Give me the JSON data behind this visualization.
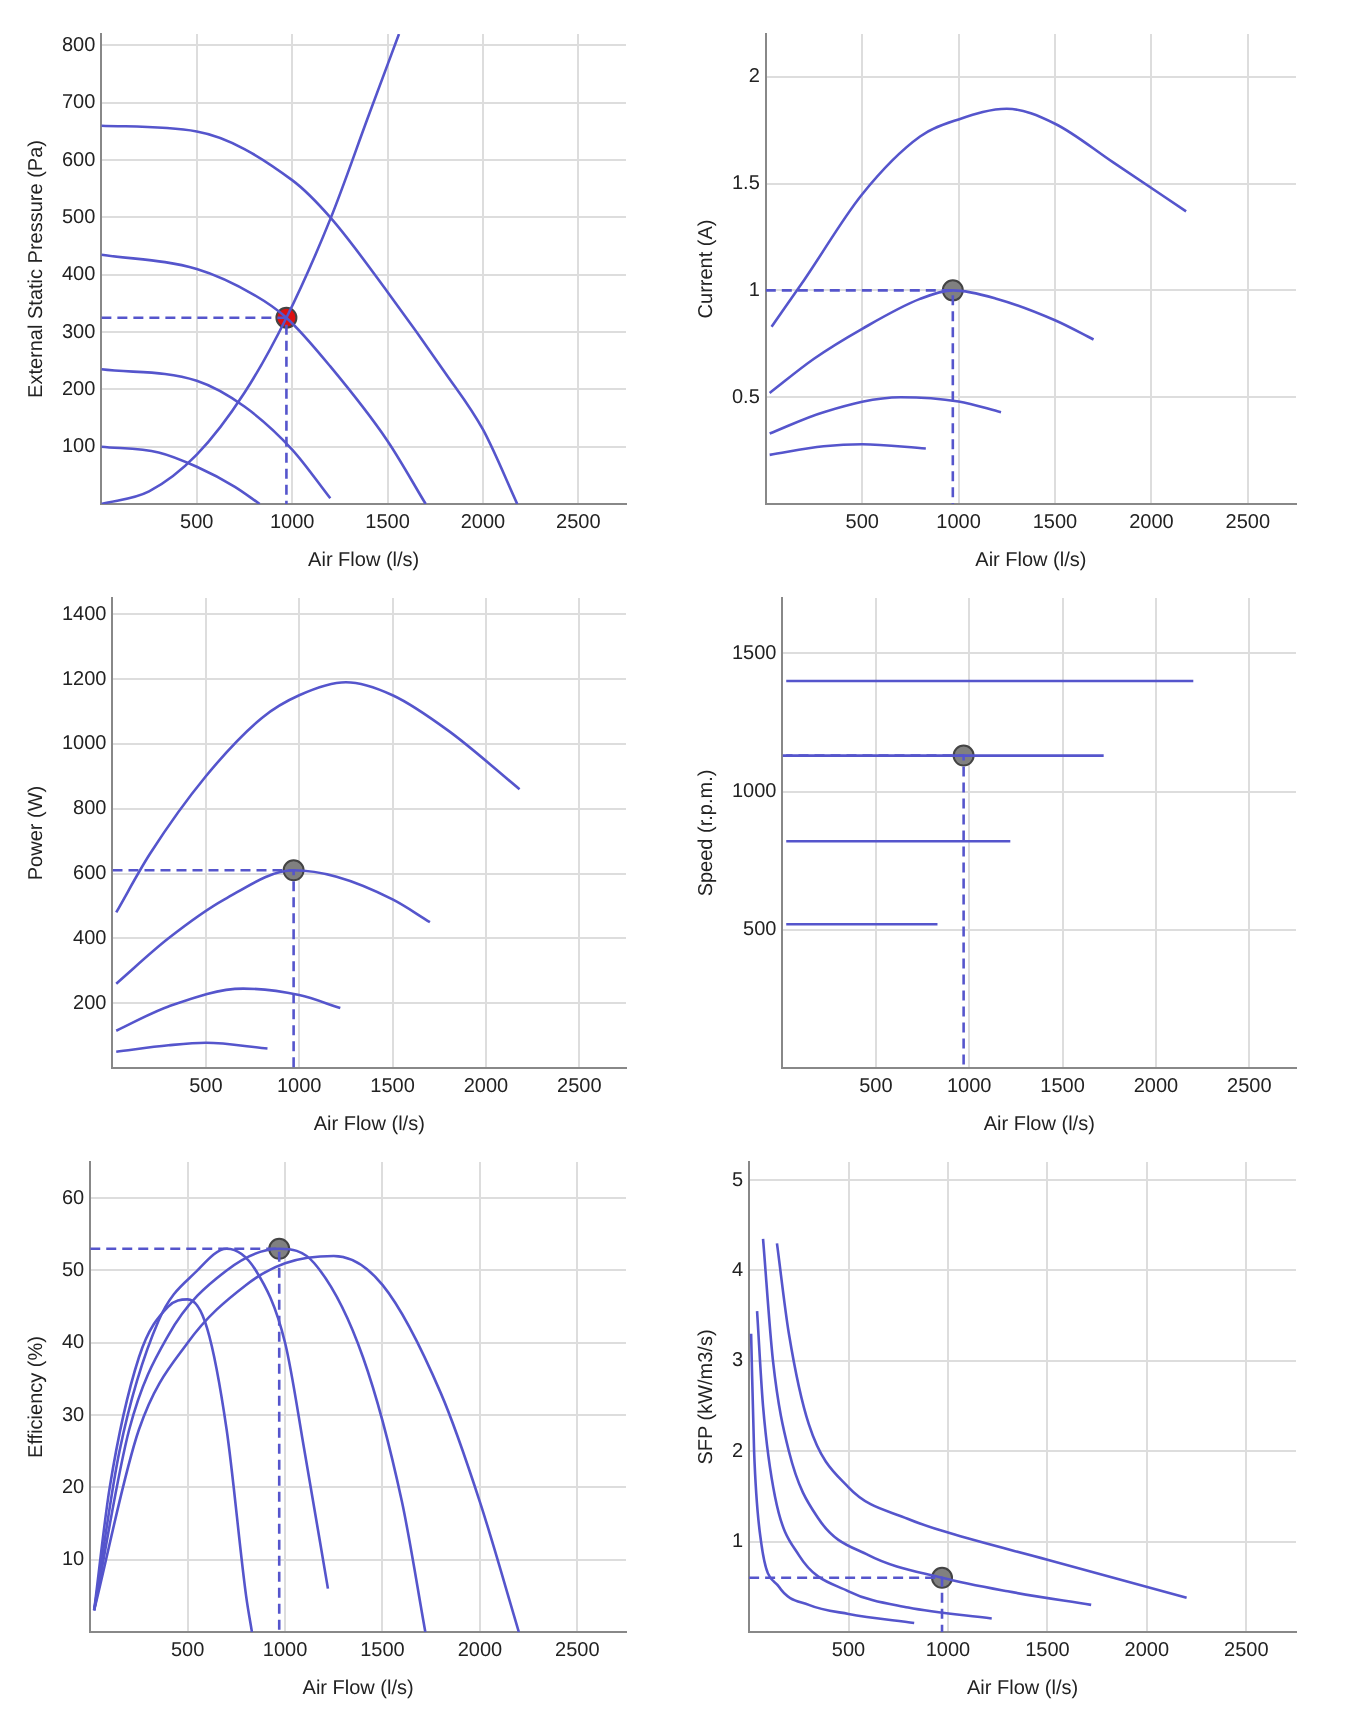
{
  "chart_data": [
    {
      "type": "line",
      "xlabel": "Air Flow (l/s)",
      "ylabel": "External Static Pressure (Pa)",
      "xlim": [
        0,
        2750
      ],
      "xticks": [
        500,
        1000,
        1500,
        2000,
        2500
      ],
      "ylim": [
        0,
        820
      ],
      "yticks": [
        100,
        200,
        300,
        400,
        500,
        600,
        700,
        800
      ],
      "grid": true,
      "series": [
        {
          "type": "line",
          "color": "#5555cc",
          "marker": "none",
          "x": [
            0,
            500,
            1000,
            1200,
            1500,
            1800,
            2000,
            2180
          ],
          "values": [
            660,
            650,
            565,
            500,
            370,
            230,
            130,
            0
          ]
        },
        {
          "type": "line",
          "color": "#5555cc",
          "marker": "none",
          "x": [
            0,
            500,
            800,
            970,
            1200,
            1500,
            1700
          ],
          "values": [
            435,
            410,
            365,
            325,
            240,
            110,
            0
          ]
        },
        {
          "type": "line",
          "color": "#5555cc",
          "marker": "none",
          "x": [
            0,
            500,
            750,
            1000,
            1200
          ],
          "values": [
            235,
            215,
            170,
            95,
            10
          ]
        },
        {
          "type": "line",
          "color": "#5555cc",
          "marker": "none",
          "x": [
            0,
            300,
            500,
            700,
            830
          ],
          "values": [
            100,
            90,
            65,
            30,
            0
          ]
        },
        {
          "type": "line",
          "color": "#5555cc",
          "marker": "none",
          "x": [
            0,
            250,
            500,
            750,
            970,
            1200,
            1400,
            1560
          ],
          "values": [
            0,
            22,
            86,
            194,
            325,
            497,
            677,
            820
          ]
        },
        {
          "type": "line",
          "color": "#5555cc",
          "marker": "none",
          "line_style": "dashed",
          "x": [
            0,
            970,
            970
          ],
          "values": [
            325,
            325,
            0
          ]
        },
        {
          "type": "scatter",
          "color": "#dd1111",
          "marker": "circle",
          "x": [
            970
          ],
          "values": [
            325
          ]
        }
      ]
    },
    {
      "type": "line",
      "xlabel": "Air Flow (l/s)",
      "ylabel": "Current (A)",
      "xlim": [
        0,
        2750
      ],
      "xticks": [
        500,
        1000,
        1500,
        2000,
        2500
      ],
      "ylim": [
        0,
        2.2
      ],
      "yticks": [
        0.5,
        1,
        1.5,
        2
      ],
      "grid": true,
      "series": [
        {
          "type": "line",
          "color": "#5555cc",
          "marker": "none",
          "x": [
            30,
            200,
            500,
            800,
            1000,
            1250,
            1500,
            1800,
            2180
          ],
          "values": [
            0.83,
            1.05,
            1.45,
            1.72,
            1.8,
            1.85,
            1.78,
            1.6,
            1.37
          ]
        },
        {
          "type": "line",
          "color": "#5555cc",
          "marker": "none",
          "x": [
            20,
            250,
            500,
            800,
            970,
            1200,
            1500,
            1700
          ],
          "values": [
            0.52,
            0.68,
            0.82,
            0.96,
            1.0,
            0.96,
            0.86,
            0.77
          ]
        },
        {
          "type": "line",
          "color": "#5555cc",
          "marker": "none",
          "x": [
            20,
            300,
            700,
            1000,
            1220
          ],
          "values": [
            0.33,
            0.43,
            0.5,
            0.48,
            0.43
          ]
        },
        {
          "type": "line",
          "color": "#5555cc",
          "marker": "none",
          "x": [
            20,
            300,
            500,
            830
          ],
          "values": [
            0.23,
            0.27,
            0.28,
            0.26
          ]
        },
        {
          "type": "line",
          "color": "#5555cc",
          "marker": "none",
          "line_style": "dashed",
          "x": [
            0,
            970,
            970
          ],
          "values": [
            1.0,
            1.0,
            0
          ]
        },
        {
          "type": "scatter",
          "color": "#808080",
          "marker": "circle",
          "x": [
            970
          ],
          "values": [
            1.0
          ]
        }
      ]
    },
    {
      "type": "line",
      "xlabel": "Air Flow (l/s)",
      "ylabel": "Power (W)",
      "xlim": [
        0,
        2750
      ],
      "xticks": [
        500,
        1000,
        1500,
        2000,
        2500
      ],
      "ylim": [
        0,
        1450
      ],
      "yticks": [
        200,
        400,
        600,
        800,
        1000,
        1200,
        1400
      ],
      "grid": true,
      "series": [
        {
          "type": "line",
          "color": "#5555cc",
          "marker": "none",
          "x": [
            20,
            200,
            500,
            800,
            1000,
            1250,
            1500,
            1800,
            2180
          ],
          "values": [
            480,
            660,
            900,
            1080,
            1150,
            1190,
            1150,
            1040,
            860
          ]
        },
        {
          "type": "line",
          "color": "#5555cc",
          "marker": "none",
          "x": [
            20,
            300,
            600,
            970,
            1200,
            1500,
            1700
          ],
          "values": [
            260,
            400,
            520,
            610,
            590,
            520,
            450
          ]
        },
        {
          "type": "line",
          "color": "#5555cc",
          "marker": "none",
          "x": [
            20,
            300,
            700,
            1000,
            1220
          ],
          "values": [
            115,
            190,
            245,
            225,
            185
          ]
        },
        {
          "type": "line",
          "color": "#5555cc",
          "marker": "none",
          "x": [
            20,
            300,
            500,
            830
          ],
          "values": [
            50,
            70,
            78,
            60
          ]
        },
        {
          "type": "line",
          "color": "#5555cc",
          "marker": "none",
          "line_style": "dashed",
          "x": [
            0,
            970,
            970
          ],
          "values": [
            610,
            610,
            0
          ]
        },
        {
          "type": "scatter",
          "color": "#808080",
          "marker": "circle",
          "x": [
            970
          ],
          "values": [
            610
          ]
        }
      ]
    },
    {
      "type": "line",
      "xlabel": "Air Flow (l/s)",
      "ylabel": "Speed (r.p.m.)",
      "xlim": [
        0,
        2750
      ],
      "xticks": [
        500,
        1000,
        1500,
        2000,
        2500
      ],
      "ylim": [
        0,
        1700
      ],
      "yticks": [
        500,
        1000,
        1500
      ],
      "grid": true,
      "series": [
        {
          "type": "line",
          "color": "#5555cc",
          "marker": "none",
          "x": [
            20,
            2200
          ],
          "values": [
            1400,
            1400
          ]
        },
        {
          "type": "line",
          "color": "#5555cc",
          "marker": "none",
          "x": [
            20,
            1720
          ],
          "values": [
            1130,
            1130
          ]
        },
        {
          "type": "line",
          "color": "#5555cc",
          "marker": "none",
          "x": [
            20,
            1220
          ],
          "values": [
            820,
            820
          ]
        },
        {
          "type": "line",
          "color": "#5555cc",
          "marker": "none",
          "x": [
            20,
            830
          ],
          "values": [
            520,
            520
          ]
        },
        {
          "type": "line",
          "color": "#5555cc",
          "marker": "none",
          "line_style": "dashed",
          "x": [
            0,
            970,
            970
          ],
          "values": [
            1130,
            1130,
            0
          ]
        },
        {
          "type": "scatter",
          "color": "#808080",
          "marker": "circle",
          "x": [
            970
          ],
          "values": [
            1130
          ]
        }
      ]
    },
    {
      "type": "line",
      "xlabel": "Air Flow (l/s)",
      "ylabel": "Efficiency (%)",
      "xlim": [
        0,
        2750
      ],
      "xticks": [
        500,
        1000,
        1500,
        2000,
        2500
      ],
      "ylim": [
        0,
        65
      ],
      "yticks": [
        10,
        20,
        30,
        40,
        50,
        60
      ],
      "grid": true,
      "series": [
        {
          "type": "line",
          "color": "#5555cc",
          "marker": "none",
          "x": [
            20,
            100,
            250,
            400,
            500,
            600,
            700,
            800,
            830
          ],
          "values": [
            3,
            20,
            38,
            45,
            46,
            42,
            28,
            5,
            0
          ]
        },
        {
          "type": "line",
          "color": "#5555cc",
          "marker": "none",
          "x": [
            20,
            150,
            350,
            550,
            700,
            850,
            1000,
            1100,
            1220
          ],
          "values": [
            3,
            25,
            43,
            50,
            53,
            50,
            40,
            25,
            6
          ]
        },
        {
          "type": "line",
          "color": "#5555cc",
          "marker": "none",
          "x": [
            20,
            200,
            400,
            700,
            970,
            1150,
            1400,
            1600,
            1720
          ],
          "values": [
            3,
            28,
            41,
            50,
            53,
            51,
            38,
            18,
            0
          ]
        },
        {
          "type": "line",
          "color": "#5555cc",
          "marker": "none",
          "x": [
            20,
            250,
            500,
            800,
            1000,
            1250,
            1500,
            1800,
            2000,
            2200
          ],
          "values": [
            3,
            28,
            40,
            48,
            51,
            52,
            48,
            33,
            18,
            0
          ]
        },
        {
          "type": "line",
          "color": "#5555cc",
          "marker": "none",
          "line_style": "dashed",
          "x": [
            0,
            970,
            970
          ],
          "values": [
            53,
            53,
            0
          ]
        },
        {
          "type": "scatter",
          "color": "#808080",
          "marker": "circle",
          "x": [
            970
          ],
          "values": [
            53
          ]
        }
      ]
    },
    {
      "type": "line",
      "xlabel": "Air Flow (l/s)",
      "ylabel": "SFP (kW/m3/s)",
      "xlim": [
        0,
        2750
      ],
      "xticks": [
        500,
        1000,
        1500,
        2000,
        2500
      ],
      "ylim": [
        0,
        5.2
      ],
      "yticks": [
        1,
        2,
        3,
        4,
        5
      ],
      "grid": true,
      "series": [
        {
          "type": "line",
          "color": "#5555cc",
          "marker": "none",
          "x": [
            10,
            25,
            60,
            150,
            300,
            500,
            830
          ],
          "values": [
            3.3,
            2,
            1,
            0.5,
            0.3,
            0.2,
            0.1
          ]
        },
        {
          "type": "line",
          "color": "#5555cc",
          "marker": "none",
          "x": [
            40,
            70,
            130,
            250,
            500,
            800,
            1220
          ],
          "values": [
            3.55,
            2.5,
            1.5,
            0.85,
            0.45,
            0.27,
            0.15
          ]
        },
        {
          "type": "line",
          "color": "#5555cc",
          "marker": "none",
          "x": [
            70,
            120,
            200,
            350,
            600,
            970,
            1300,
            1720
          ],
          "values": [
            4.35,
            3,
            2,
            1.25,
            0.85,
            0.6,
            0.45,
            0.3
          ]
        },
        {
          "type": "line",
          "color": "#5555cc",
          "marker": "none",
          "x": [
            140,
            200,
            300,
            500,
            800,
            1000,
            1500,
            2200
          ],
          "values": [
            4.3,
            3.3,
            2.3,
            1.6,
            1.25,
            1.1,
            0.8,
            0.38
          ]
        },
        {
          "type": "line",
          "color": "#5555cc",
          "marker": "none",
          "line_style": "dashed",
          "x": [
            0,
            970,
            970
          ],
          "values": [
            0.6,
            0.6,
            0
          ]
        },
        {
          "type": "scatter",
          "color": "#808080",
          "marker": "circle",
          "x": [
            970
          ],
          "values": [
            0.6
          ]
        }
      ]
    }
  ]
}
